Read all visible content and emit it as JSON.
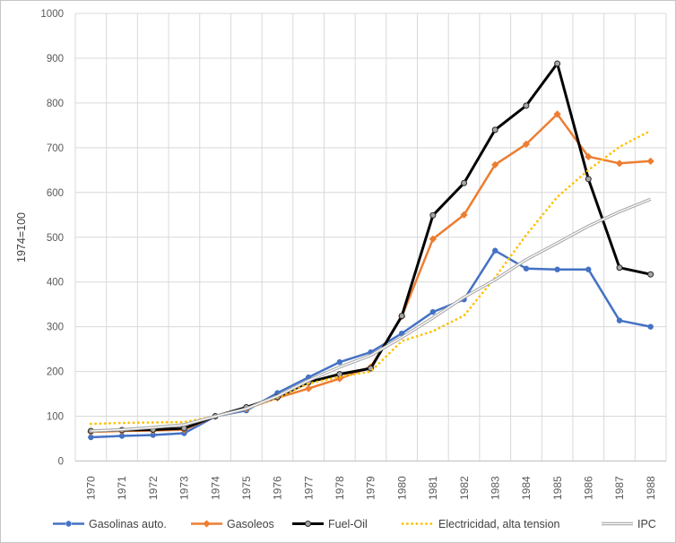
{
  "chart_data": {
    "type": "line",
    "title": "",
    "ylabel": "1974=100",
    "xlabel": "",
    "ylim": [
      0,
      1000
    ],
    "ytick_step": 100,
    "y_tick_labels": [
      "0",
      "100",
      "200",
      "300",
      "400",
      "500",
      "600",
      "700",
      "800",
      "900",
      "1000"
    ],
    "grid": true,
    "legend_position": "bottom",
    "x": [
      "1970",
      "1971",
      "1972",
      "1973",
      "1974",
      "1975",
      "1976",
      "1977",
      "1978",
      "1979",
      "1980",
      "1981",
      "1982",
      "1983",
      "1984",
      "1985",
      "1986",
      "1987",
      "1988"
    ],
    "series": [
      {
        "name": "Gasolinas auto.",
        "color": "#4472C4",
        "line_style": "solid",
        "marker": "circle",
        "values": [
          53,
          56,
          58,
          62,
          100,
          113,
          152,
          187,
          221,
          243,
          285,
          333,
          361,
          470,
          430,
          428,
          428,
          314,
          300
        ]
      },
      {
        "name": "Gasoleos",
        "color": "#ED7D31",
        "line_style": "solid",
        "marker": "diamond",
        "values": [
          65,
          67,
          68,
          70,
          100,
          117,
          141,
          162,
          184,
          210,
          323,
          496,
          550,
          662,
          708,
          775,
          680,
          665,
          670
        ]
      },
      {
        "name": "Fuel-Oil",
        "color": "#000000",
        "line_style": "solid",
        "marker": "circle-gray",
        "values": [
          67,
          69,
          70,
          73,
          100,
          120,
          143,
          176,
          194,
          207,
          324,
          549,
          621,
          740,
          794,
          888,
          630,
          432,
          417
        ]
      },
      {
        "name": "Electricidad, alta tension",
        "color": "#FFC000",
        "line_style": "dotted",
        "marker": "none",
        "values": [
          83,
          85,
          86,
          87,
          100,
          117,
          142,
          173,
          188,
          200,
          268,
          290,
          325,
          410,
          505,
          590,
          650,
          702,
          738
        ]
      },
      {
        "name": "IPC",
        "color": "#A6A6A6",
        "line_style": "double",
        "marker": "none",
        "values": [
          67,
          70,
          75,
          81,
          100,
          117,
          145,
          180,
          210,
          236,
          276,
          320,
          366,
          405,
          450,
          487,
          525,
          557,
          585
        ]
      }
    ],
    "colors": {
      "gridline": "#D9D9D9",
      "axis_line": "#BFBFBF",
      "tick_label": "#595959",
      "legend_text": "#404040",
      "frame_border": "#C6C6C6",
      "background": "#FFFFFF"
    }
  }
}
